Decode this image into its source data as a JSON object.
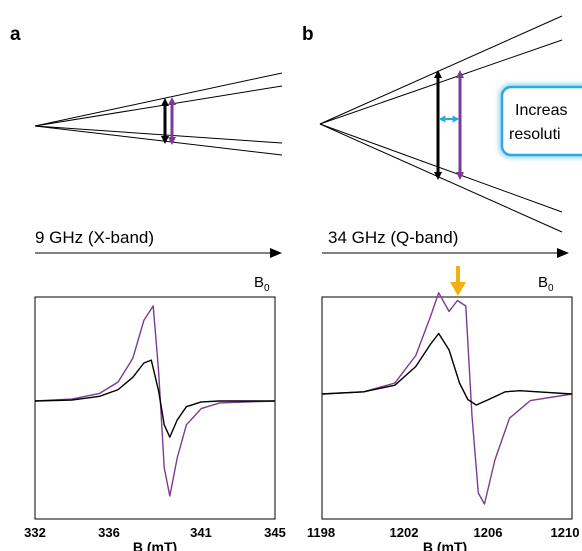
{
  "colors": {
    "black": "#000000",
    "purple": "#7b3b93",
    "cyan": "#2aa9e0",
    "orange": "#f2b111",
    "callout_glow": "#29abe2"
  },
  "panels": [
    {
      "label": "a",
      "band_label": "9 GHz (X-band)",
      "field_symbol": "B",
      "field_subscript": "0",
      "chart_data": {
        "type": "line",
        "xlabel": "B (mT)",
        "xlim": [
          332,
          345
        ],
        "xticks": [
          "332",
          "336",
          "341",
          "345"
        ],
        "series": [
          {
            "color": "purple",
            "x": [
              332,
              334,
              335.5,
              336.5,
              337.3,
              337.9,
              338.4,
              338.7,
              339.0,
              339.3,
              339.7,
              340.2,
              341,
              342,
              345
            ],
            "y": [
              0.0,
              0.02,
              0.08,
              0.2,
              0.45,
              0.85,
              1.0,
              0.3,
              -0.7,
              -1.0,
              -0.6,
              -0.25,
              -0.08,
              -0.02,
              0.0
            ]
          },
          {
            "color": "black",
            "x": [
              332,
              334,
              335.5,
              336.5,
              337.3,
              337.9,
              338.3,
              338.7,
              339.0,
              339.3,
              339.7,
              340.2,
              341,
              342,
              345
            ],
            "y": [
              0.0,
              0.01,
              0.05,
              0.12,
              0.25,
              0.4,
              0.43,
              0.1,
              -0.25,
              -0.38,
              -0.2,
              -0.06,
              -0.01,
              0.0,
              0.0
            ]
          }
        ]
      }
    },
    {
      "label": "b",
      "band_label": "34 GHz (Q-band)",
      "field_symbol": "B",
      "field_subscript": "0",
      "callout_text": [
        "Increas",
        "resoluti"
      ],
      "chart_data": {
        "type": "line",
        "xlabel": "B (mT)",
        "xlim": [
          1198,
          1210
        ],
        "xticks": [
          "1198",
          "1202",
          "1206",
          "1210"
        ],
        "series": [
          {
            "color": "purple",
            "x": [
              1198,
              1200,
              1201.5,
              1202.5,
              1203.2,
              1203.6,
              1204.1,
              1204.5,
              1204.9,
              1205.2,
              1205.5,
              1205.8,
              1206.3,
              1207,
              1208,
              1210
            ],
            "y": [
              0.0,
              0.02,
              0.1,
              0.35,
              0.7,
              0.92,
              0.75,
              0.85,
              0.8,
              -0.2,
              -0.9,
              -1.0,
              -0.6,
              -0.22,
              -0.06,
              0.0
            ]
          },
          {
            "color": "black",
            "x": [
              1198,
              1200,
              1201.5,
              1202.5,
              1203.2,
              1203.6,
              1204.1,
              1204.6,
              1205.0,
              1205.4,
              1206.0,
              1206.8,
              1207.5,
              1210
            ],
            "y": [
              0.0,
              0.02,
              0.08,
              0.25,
              0.45,
              0.55,
              0.4,
              0.1,
              -0.05,
              -0.1,
              -0.05,
              0.02,
              0.03,
              0.0
            ]
          }
        ]
      }
    }
  ]
}
